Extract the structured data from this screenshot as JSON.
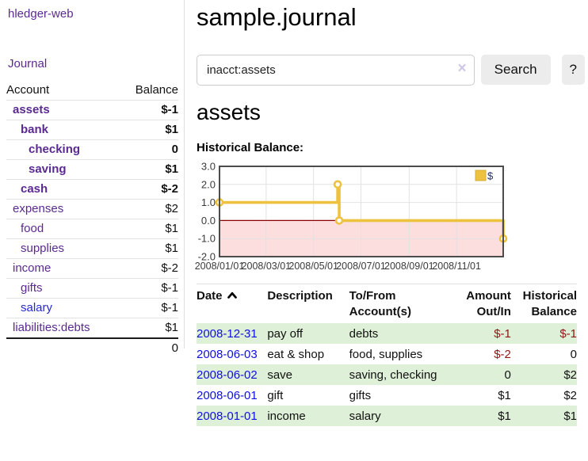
{
  "app": {
    "title": "hledger-web"
  },
  "colors": {
    "link_purple": "#5b2a91",
    "link_blue": "#2626dc",
    "date_link_blue": "#0f0fe0",
    "negative_strong": "#8b1212",
    "negative_soft": "#b08080",
    "row_stripe_green": "#dff0d8",
    "chart_line_gold": "#edc240",
    "chart_negative_region": "#fcdede",
    "chart_zero_line": "#8b0000"
  },
  "sidebar": {
    "journal_link": "Journal",
    "table": {
      "headers": [
        "Account",
        "Balance"
      ],
      "rows": [
        {
          "account": "assets",
          "balance": "$-1",
          "depth": 1,
          "bold": true,
          "negative": "strong",
          "link_color": "purple"
        },
        {
          "account": "bank",
          "balance": "$1",
          "depth": 2,
          "bold": true,
          "negative": "",
          "link_color": "purple"
        },
        {
          "account": "checking",
          "balance": "0",
          "depth": 3,
          "bold": true,
          "negative": "",
          "link_color": "purple"
        },
        {
          "account": "saving",
          "balance": "$1",
          "depth": 3,
          "bold": true,
          "negative": "",
          "link_color": "purple"
        },
        {
          "account": "cash",
          "balance": "$-2",
          "depth": 2,
          "bold": true,
          "negative": "strong",
          "link_color": "purple"
        },
        {
          "account": "expenses",
          "balance": "$2",
          "depth": 1,
          "bold": false,
          "negative": "",
          "link_color": "purple"
        },
        {
          "account": "food",
          "balance": "$1",
          "depth": 2,
          "bold": false,
          "negative": "",
          "link_color": "purple"
        },
        {
          "account": "supplies",
          "balance": "$1",
          "depth": 2,
          "bold": false,
          "negative": "",
          "link_color": "purple"
        },
        {
          "account": "income",
          "balance": "$-2",
          "depth": 1,
          "bold": false,
          "negative": "soft",
          "link_color": "purple"
        },
        {
          "account": "gifts",
          "balance": "$-1",
          "depth": 2,
          "bold": false,
          "negative": "soft",
          "link_color": "purple"
        },
        {
          "account": "salary",
          "balance": "$-1",
          "depth": 2,
          "bold": false,
          "negative": "soft",
          "link_color": "blue"
        },
        {
          "account": "liabilities:debts",
          "balance": "$1",
          "depth": 1,
          "bold": false,
          "negative": "",
          "link_color": "purple"
        }
      ],
      "total": "0"
    }
  },
  "main": {
    "title": "sample.journal",
    "search": {
      "value": "inacct:assets",
      "clear_icon": "×",
      "button_label": "Search",
      "help_label": "?"
    },
    "account_heading": "assets",
    "chart_label": "Historical Balance:"
  },
  "chart_data": {
    "type": "line-step",
    "title": "Historical Balance",
    "legend": {
      "label": "$",
      "position": "top-right"
    },
    "ylim": [
      -2,
      3
    ],
    "y_ticks": [
      {
        "label": "3.0",
        "value": 3
      },
      {
        "label": "2.0",
        "value": 2
      },
      {
        "label": "1.0",
        "value": 1
      },
      {
        "label": "0.0",
        "value": 0
      },
      {
        "label": "-1.0",
        "value": -1
      },
      {
        "label": "-2.0",
        "value": -2
      }
    ],
    "x_range_days": 365,
    "x_ticks": [
      {
        "label": "2008/01/01",
        "day": 0
      },
      {
        "label": "2008/03/01",
        "day": 60
      },
      {
        "label": "2008/05/01",
        "day": 121
      },
      {
        "label": "2008/07/01",
        "day": 182
      },
      {
        "label": "2008/09/01",
        "day": 244
      },
      {
        "label": "2008/11/01",
        "day": 305
      }
    ],
    "series": [
      {
        "name": "$",
        "points": [
          {
            "date": "2008-01-01",
            "day": 0,
            "value": 1
          },
          {
            "date": "2008-06-01",
            "day": 152,
            "value": 2
          },
          {
            "date": "2008-06-03",
            "day": 154,
            "value": 0
          },
          {
            "date": "2008-12-31",
            "day": 365,
            "value": -1
          }
        ]
      }
    ],
    "grid": true
  },
  "register": {
    "columns": [
      {
        "lines": [
          "Date"
        ],
        "align": "left",
        "sorted": "asc",
        "key": "date"
      },
      {
        "lines": [
          "Description"
        ],
        "align": "left",
        "key": "desc"
      },
      {
        "lines": [
          "To/From",
          "Account(s)"
        ],
        "align": "left",
        "key": "acct"
      },
      {
        "lines": [
          "Amount",
          "Out/In"
        ],
        "align": "right",
        "key": "amt"
      },
      {
        "lines": [
          "Historical",
          "Balance"
        ],
        "align": "right",
        "key": "bal"
      }
    ],
    "rows": [
      {
        "date": "2008-12-31",
        "description": "pay off",
        "accounts": "debts",
        "amount": "$-1",
        "amount_negative": true,
        "balance": "$-1",
        "balance_negative": true
      },
      {
        "date": "2008-06-03",
        "description": "eat & shop",
        "accounts": "food, supplies",
        "amount": "$-2",
        "amount_negative": true,
        "balance": "0",
        "balance_negative": false
      },
      {
        "date": "2008-06-02",
        "description": "save",
        "accounts": "saving, checking",
        "amount": "0",
        "amount_negative": false,
        "balance": "$2",
        "balance_negative": false
      },
      {
        "date": "2008-06-01",
        "description": "gift",
        "accounts": "gifts",
        "amount": "$1",
        "amount_negative": false,
        "balance": "$2",
        "balance_negative": false
      },
      {
        "date": "2008-01-01",
        "description": "income",
        "accounts": "salary",
        "amount": "$1",
        "amount_negative": false,
        "balance": "$1",
        "balance_negative": false
      }
    ]
  }
}
